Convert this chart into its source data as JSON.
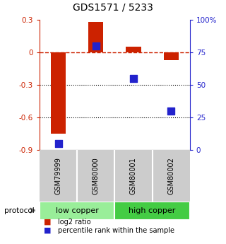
{
  "title": "GDS1571 / 5233",
  "samples": [
    "GSM79999",
    "GSM80000",
    "GSM80001",
    "GSM80002"
  ],
  "log2_ratio": [
    -0.75,
    0.28,
    0.05,
    -0.07
  ],
  "percentile_rank": [
    5,
    80,
    55,
    30
  ],
  "groups": [
    {
      "label": "low copper",
      "samples": [
        0,
        1
      ],
      "color": "#99ee99"
    },
    {
      "label": "high copper",
      "samples": [
        2,
        3
      ],
      "color": "#44cc44"
    }
  ],
  "ylim_left": [
    -0.9,
    0.3
  ],
  "ylim_right": [
    0,
    100
  ],
  "yticks_left": [
    -0.9,
    -0.6,
    -0.3,
    0.0,
    0.3
  ],
  "ytick_labels_left": [
    "-0.9",
    "-0.6",
    "-0.3",
    "0",
    "0.3"
  ],
  "yticks_right": [
    0,
    25,
    50,
    75,
    100
  ],
  "ytick_labels_right": [
    "0",
    "25",
    "50",
    "75",
    "100%"
  ],
  "bar_color": "#cc2200",
  "dot_color": "#2222cc",
  "dotted_lines": [
    -0.3,
    -0.6
  ],
  "bar_width": 0.4,
  "dot_size": 55,
  "legend_labels": [
    "log2 ratio",
    "percentile rank within the sample"
  ],
  "legend_colors": [
    "#cc2200",
    "#2222cc"
  ],
  "protocol_label": "protocol",
  "sample_bg_color": "#cccccc",
  "background_color": "#ffffff"
}
